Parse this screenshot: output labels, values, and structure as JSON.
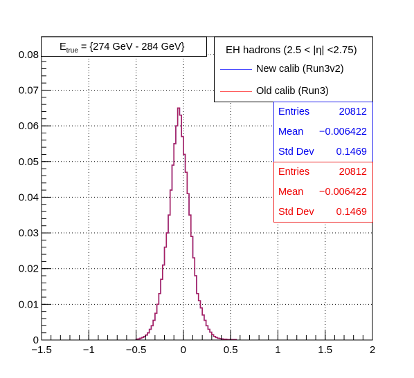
{
  "chart_data": {
    "type": "histogram",
    "title": "",
    "xlabel": "",
    "ylabel": "",
    "xlim": [
      -1.5,
      2
    ],
    "ylim": [
      0,
      0.085
    ],
    "x_ticks": [
      -1.5,
      -1,
      -0.5,
      0,
      0.5,
      1,
      1.5,
      2
    ],
    "x_tick_labels": [
      "−1.5",
      "−1",
      "−0.5",
      "0",
      "0.5",
      "1",
      "1.5",
      "2"
    ],
    "y_ticks": [
      0,
      0.01,
      0.02,
      0.03,
      0.04,
      0.05,
      0.06,
      0.07,
      0.08
    ],
    "y_tick_labels": [
      "0",
      "0.01",
      "0.02",
      "0.03",
      "0.04",
      "0.05",
      "0.06",
      "0.07",
      "0.08"
    ],
    "grid": true,
    "energy_label": {
      "prefix": "E",
      "subscript": "true",
      "range": " = {274 GeV - 284 GeV}"
    },
    "legend": {
      "title": "EH hadrons (2.5 < |η| <2.75)",
      "placement": "top-right",
      "entries": [
        {
          "label": "New calib (Run3v2)",
          "color": "#4a4aff"
        },
        {
          "label": "Old calib (Run3)",
          "color": "#ff5a5a"
        }
      ]
    },
    "series": [
      {
        "name": "New calib (Run3v2)",
        "color": "#2222ee",
        "stats": {
          "entries_label": "Entries",
          "entries": "20812",
          "mean_label": "Mean",
          "mean": "−0.006422",
          "std_label": "Std Dev",
          "std": "0.1469"
        },
        "bin_edges_start": -0.5,
        "bin_width": 0.02,
        "values": [
          0.0002,
          0.0003,
          0.0005,
          0.0007,
          0.001,
          0.0014,
          0.002,
          0.003,
          0.004,
          0.0055,
          0.0075,
          0.01,
          0.013,
          0.017,
          0.021,
          0.026,
          0.03,
          0.035,
          0.042,
          0.049,
          0.055,
          0.06,
          0.065,
          0.063,
          0.057,
          0.052,
          0.047,
          0.041,
          0.035,
          0.029,
          0.023,
          0.018,
          0.013,
          0.011,
          0.009,
          0.007,
          0.0055,
          0.004,
          0.003,
          0.0022,
          0.0015,
          0.001,
          0.0007,
          0.0005,
          0.0004,
          0.0003,
          0.0002,
          0.0002,
          0.0001,
          0.0001,
          0.0001,
          0.0001,
          0.0001
        ]
      },
      {
        "name": "Old calib (Run3)",
        "color": "#ee2222",
        "stats": {
          "entries_label": "Entries",
          "entries": "20812",
          "mean_label": "Mean",
          "mean": "−0.006422",
          "std_label": "Std Dev",
          "std": "0.1469"
        },
        "bin_edges_start": -0.5,
        "bin_width": 0.02,
        "values": [
          0.0002,
          0.0003,
          0.0005,
          0.0007,
          0.001,
          0.0014,
          0.002,
          0.003,
          0.004,
          0.0055,
          0.0075,
          0.01,
          0.013,
          0.017,
          0.021,
          0.026,
          0.03,
          0.035,
          0.042,
          0.049,
          0.055,
          0.06,
          0.065,
          0.063,
          0.057,
          0.052,
          0.047,
          0.041,
          0.035,
          0.029,
          0.023,
          0.018,
          0.013,
          0.011,
          0.009,
          0.007,
          0.0055,
          0.004,
          0.003,
          0.0022,
          0.0015,
          0.001,
          0.0007,
          0.0005,
          0.0004,
          0.0003,
          0.0002,
          0.0002,
          0.0001,
          0.0001,
          0.0001,
          0.0001,
          0.0001
        ]
      }
    ]
  }
}
